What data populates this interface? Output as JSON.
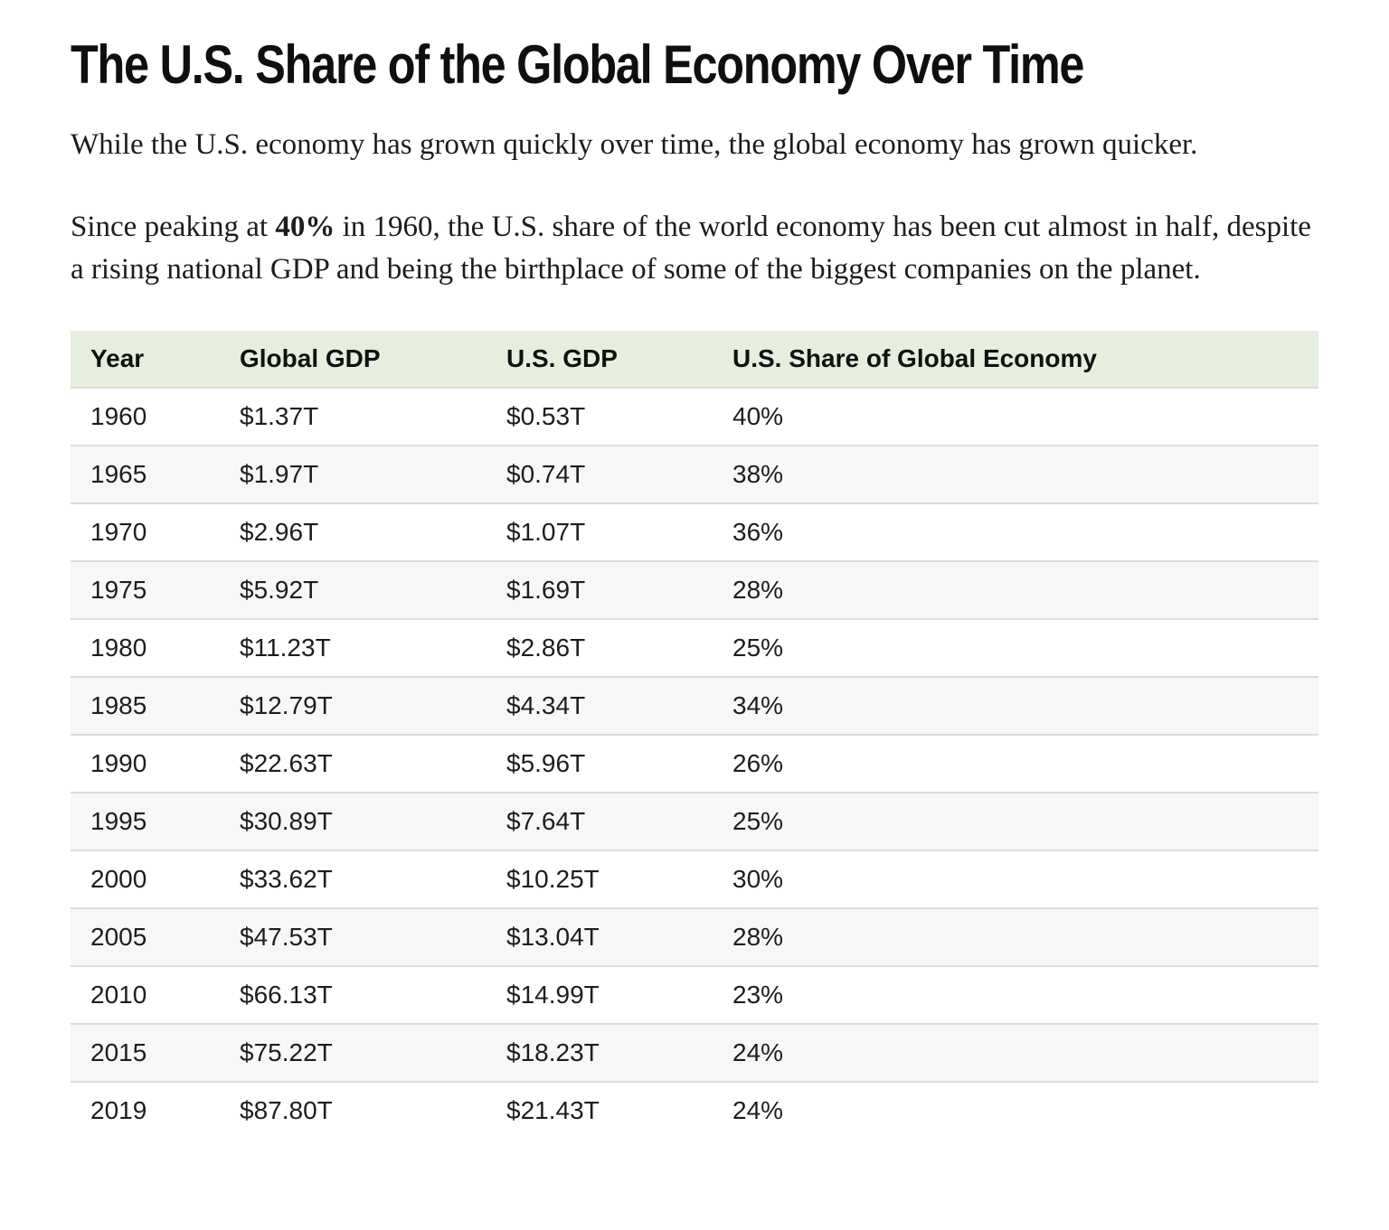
{
  "page": {
    "title": "The U.S. Share of the Global Economy Over Time",
    "intro_paragraph": "While the U.S. economy has grown quickly over time, the global economy has grown quicker.",
    "paragraph2": {
      "before_bold": "Since peaking at ",
      "bold": "40%",
      "after_bold": " in 1960, the U.S. share of the world economy has been cut almost in half, despite a rising national GDP and being the birthplace of some of the biggest companies on the planet."
    }
  },
  "colors": {
    "header_bg": "#e6eedd",
    "alt_row_bg": "#f7f7f7",
    "divider": "#dcdcdc",
    "text": "#1c1c1c",
    "title": "#0f0f0f"
  },
  "chart_data": {
    "type": "table",
    "title": "The U.S. Share of the Global Economy Over Time",
    "columns": [
      "Year",
      "Global GDP",
      "U.S. GDP",
      "U.S. Share of Global Economy"
    ],
    "rows": [
      {
        "year": "1960",
        "global_gdp": "$1.37T",
        "us_gdp": "$0.53T",
        "us_share": "40%"
      },
      {
        "year": "1965",
        "global_gdp": "$1.97T",
        "us_gdp": "$0.74T",
        "us_share": "38%"
      },
      {
        "year": "1970",
        "global_gdp": "$2.96T",
        "us_gdp": "$1.07T",
        "us_share": "36%"
      },
      {
        "year": "1975",
        "global_gdp": "$5.92T",
        "us_gdp": "$1.69T",
        "us_share": "28%"
      },
      {
        "year": "1980",
        "global_gdp": "$11.23T",
        "us_gdp": "$2.86T",
        "us_share": "25%"
      },
      {
        "year": "1985",
        "global_gdp": "$12.79T",
        "us_gdp": "$4.34T",
        "us_share": "34%"
      },
      {
        "year": "1990",
        "global_gdp": "$22.63T",
        "us_gdp": "$5.96T",
        "us_share": "26%"
      },
      {
        "year": "1995",
        "global_gdp": "$30.89T",
        "us_gdp": "$7.64T",
        "us_share": "25%"
      },
      {
        "year": "2000",
        "global_gdp": "$33.62T",
        "us_gdp": "$10.25T",
        "us_share": "30%"
      },
      {
        "year": "2005",
        "global_gdp": "$47.53T",
        "us_gdp": "$13.04T",
        "us_share": "28%"
      },
      {
        "year": "2010",
        "global_gdp": "$66.13T",
        "us_gdp": "$14.99T",
        "us_share": "23%"
      },
      {
        "year": "2015",
        "global_gdp": "$75.22T",
        "us_gdp": "$18.23T",
        "us_share": "24%"
      },
      {
        "year": "2019",
        "global_gdp": "$87.80T",
        "us_gdp": "$21.43T",
        "us_share": "24%"
      }
    ]
  }
}
